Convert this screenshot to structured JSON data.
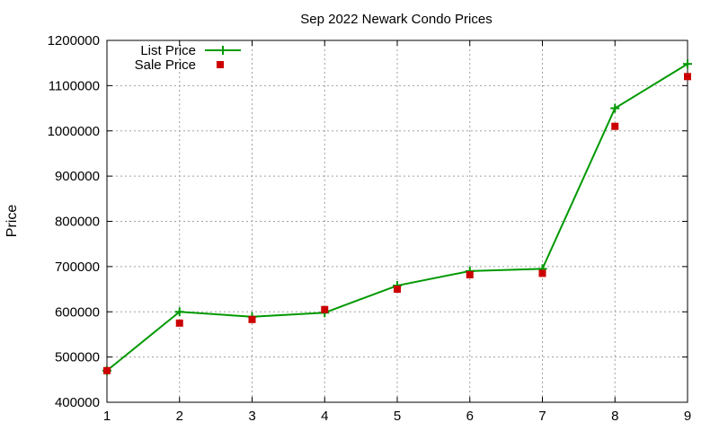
{
  "chart_data": {
    "type": "line",
    "title": "Sep 2022 Newark Condo Prices",
    "xlabel": "",
    "ylabel": "Price",
    "x": [
      1,
      2,
      3,
      4,
      5,
      6,
      7,
      8,
      9
    ],
    "xlim": [
      1,
      9
    ],
    "ylim": [
      400000,
      1200000
    ],
    "xticks": [
      "1",
      "2",
      "3",
      "4",
      "5",
      "6",
      "7",
      "8",
      "9"
    ],
    "yticks": [
      "400000",
      "500000",
      "600000",
      "700000",
      "800000",
      "900000",
      "1000000",
      "1100000",
      "1200000"
    ],
    "grid": true,
    "legend_position": "top-left",
    "series": [
      {
        "name": "List Price",
        "style": "line-with-plus-markers",
        "color": "#009900",
        "values": [
          470000,
          600000,
          589000,
          598000,
          658000,
          690000,
          695000,
          1050000,
          1148000
        ]
      },
      {
        "name": "Sale Price",
        "style": "square-markers",
        "color": "#cc0000",
        "values": [
          470000,
          575000,
          583000,
          605000,
          650000,
          682000,
          685000,
          1010000,
          1120000
        ]
      }
    ]
  }
}
